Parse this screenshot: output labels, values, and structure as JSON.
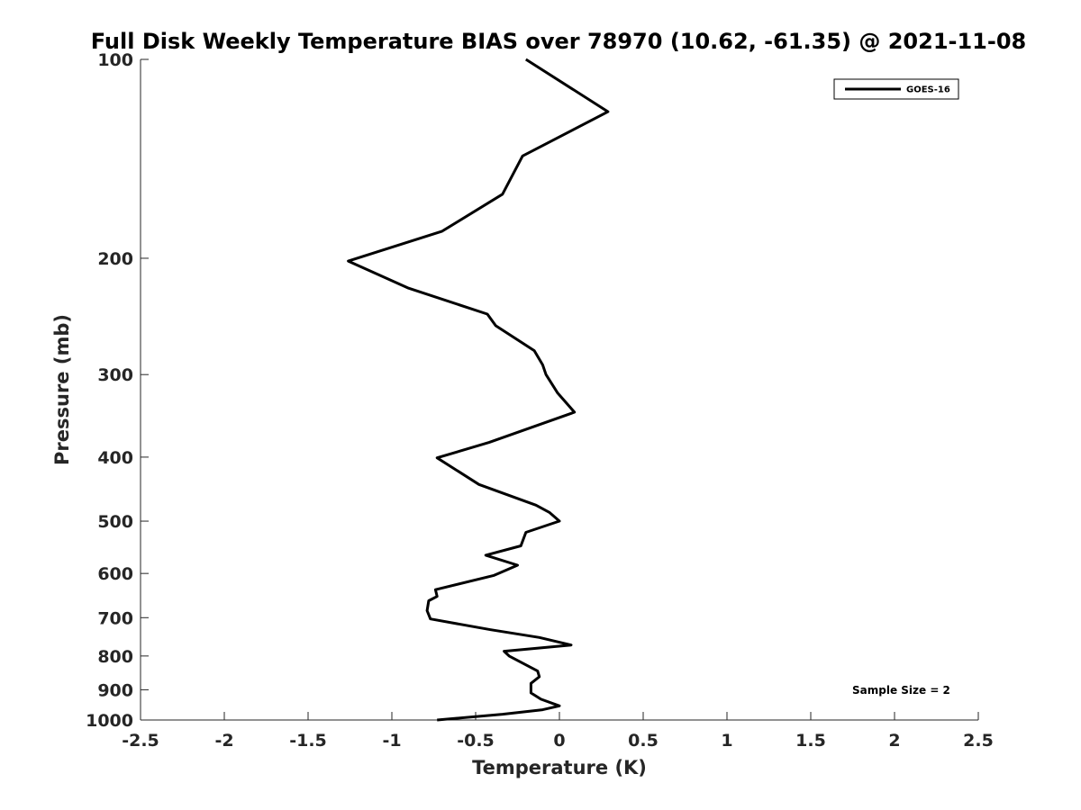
{
  "chart_data": {
    "type": "line",
    "title": "Full Disk Weekly Temperature BIAS over 78970 (10.62, -61.35) @ 2021-11-08",
    "xlabel": "Temperature (K)",
    "ylabel": "Pressure (mb)",
    "xlim": [
      -2.5,
      2.5
    ],
    "ylim": [
      1000,
      100
    ],
    "y_scale": "log",
    "x_ticks": [
      "-2.5",
      "-2",
      "-1.5",
      "-1",
      "-0.5",
      "0",
      "0.5",
      "1",
      "1.5",
      "2",
      "2.5"
    ],
    "y_ticks": [
      "100",
      "200",
      "300",
      "400",
      "500",
      "600",
      "700",
      "800",
      "900",
      "1000"
    ],
    "grid": false,
    "legend_position": "top-right",
    "annotation": "Sample Size = 2",
    "series_color": "#000000",
    "series": [
      {
        "name": "GOES-16",
        "x": [
          -0.2,
          0.29,
          -0.22,
          -0.34,
          -0.7,
          -1.26,
          -0.9,
          -0.43,
          -0.38,
          -0.15,
          -0.1,
          -0.08,
          -0.01,
          0.09,
          -0.42,
          -0.73,
          -0.48,
          -0.14,
          -0.06,
          0.0,
          -0.2,
          -0.23,
          -0.44,
          -0.25,
          -0.39,
          -0.74,
          -0.73,
          -0.78,
          -0.79,
          -0.77,
          -0.41,
          -0.12,
          0.07,
          -0.33,
          -0.3,
          -0.13,
          -0.12,
          -0.17,
          -0.17,
          -0.11,
          0.0,
          -0.1,
          -0.34,
          -0.73
        ],
        "y": [
          100,
          120,
          140,
          160,
          182,
          202,
          222,
          243,
          253,
          276,
          290,
          300,
          320,
          342,
          380,
          401,
          440,
          473,
          485,
          500,
          520,
          545,
          563,
          583,
          604,
          635,
          650,
          660,
          683,
          703,
          730,
          750,
          770,
          787,
          800,
          843,
          860,
          880,
          910,
          930,
          952,
          965,
          980,
          1000
        ]
      }
    ]
  }
}
